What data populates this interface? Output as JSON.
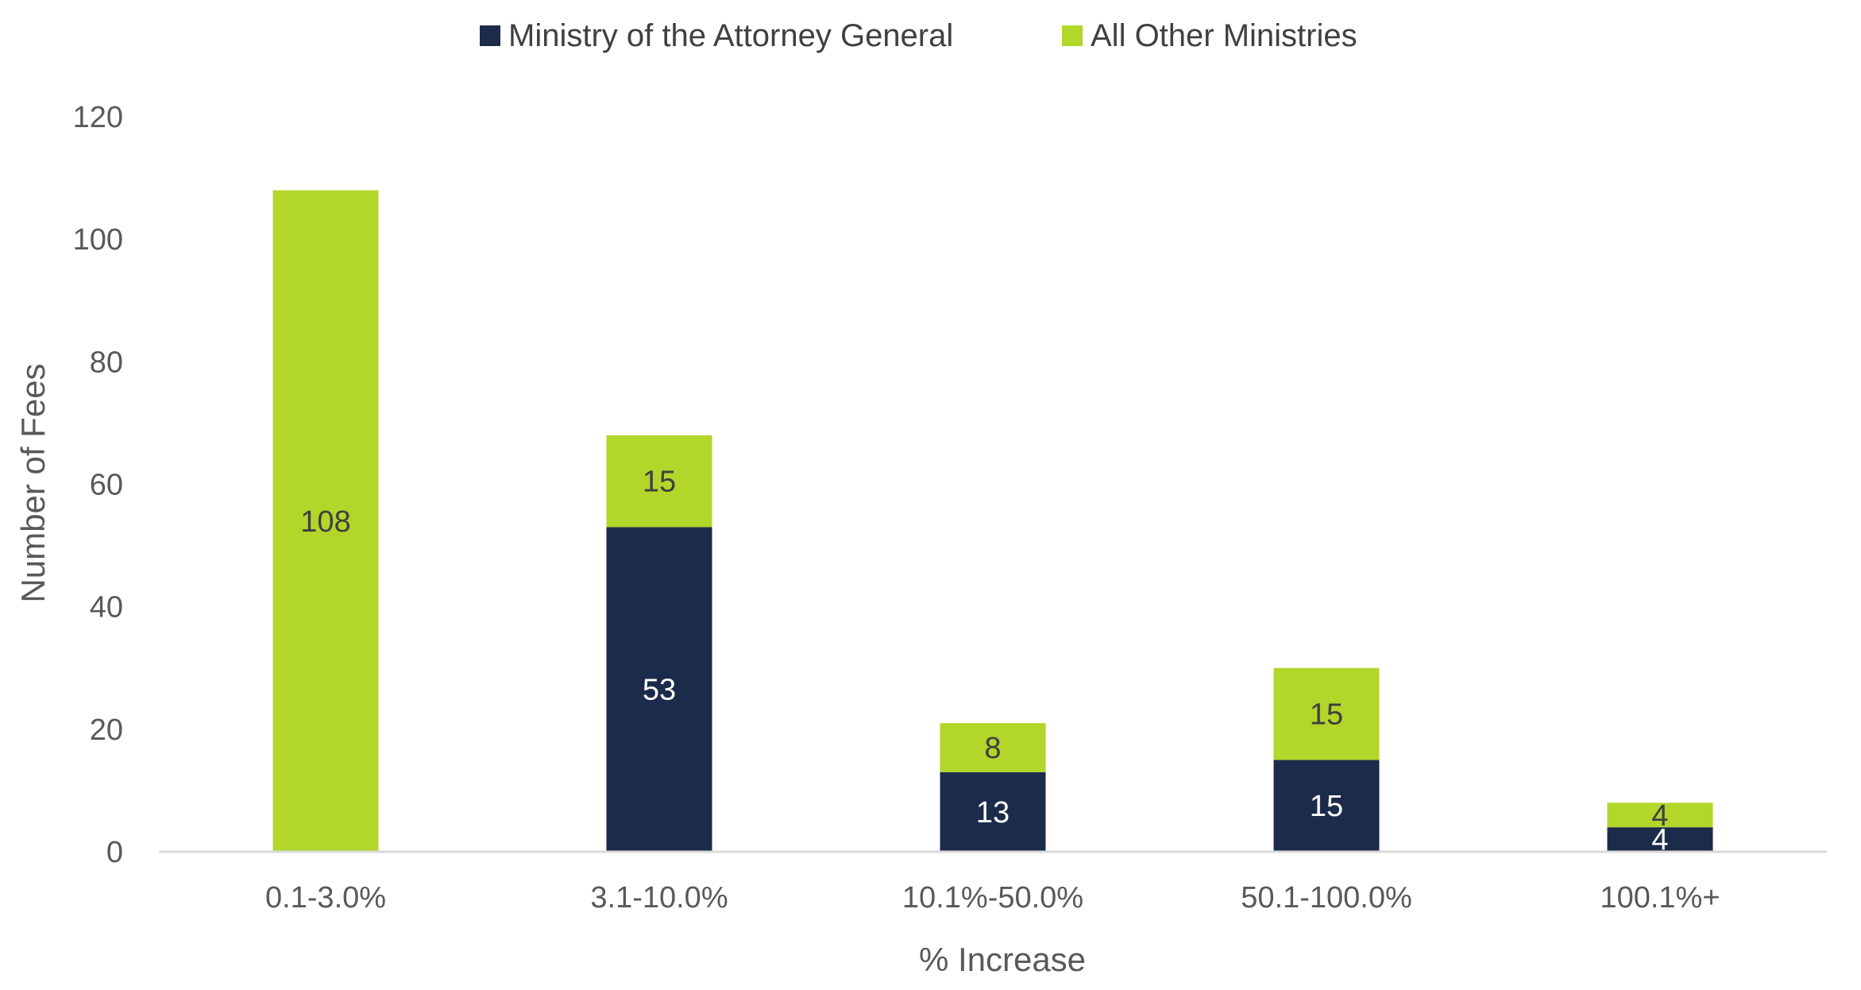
{
  "chart_data": {
    "type": "bar",
    "stacked": true,
    "categories": [
      "0.1-3.0%",
      "3.1-10.0%",
      "10.1%-50.0%",
      "50.1-100.0%",
      "100.1%+"
    ],
    "series": [
      {
        "name": "Ministry of the Attorney General",
        "values": [
          0,
          53,
          13,
          15,
          4
        ],
        "color": "#1d2b4a",
        "label_color": "#ffffff"
      },
      {
        "name": "All Other Ministries",
        "values": [
          108,
          15,
          8,
          15,
          4
        ],
        "color": "#b2d62a",
        "label_color": "#404040"
      }
    ],
    "xlabel": "% Increase",
    "ylabel": "Number of Fees",
    "ylim": [
      0,
      120
    ],
    "yticks": [
      0,
      20,
      40,
      60,
      80,
      100,
      120
    ],
    "grid": false,
    "legend_position": "top-center",
    "axis_color": "#d9d9d9"
  }
}
